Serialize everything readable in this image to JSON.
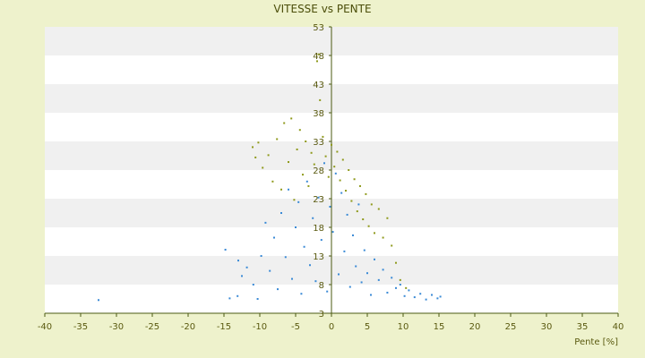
{
  "chart_data": {
    "type": "scatter",
    "title": "VITESSE vs PENTE",
    "xlabel": "Pente [%]",
    "ylabel": "",
    "xlim": [
      -40,
      40
    ],
    "ylim": [
      3,
      53
    ],
    "x_ticks": [
      -40,
      -35,
      -30,
      -25,
      -20,
      -15,
      -10,
      -5,
      0,
      5,
      10,
      15,
      20,
      25,
      30,
      35,
      40
    ],
    "y_ticks": [
      3,
      8,
      13,
      18,
      23,
      28,
      33,
      38,
      43,
      48,
      53
    ],
    "grid": "alternating-horizontal-bands",
    "legend": "none",
    "colors": {
      "background": "#eef2cc",
      "plot_band_light": "#ffffff",
      "plot_band_dark": "#f0f0f0",
      "axis": "#4b5a12",
      "tick_label": "#5a5a10",
      "series_1": "#3a8ad6",
      "series_2": "#8f9a1c"
    },
    "series": [
      {
        "color": "#3a8ad6",
        "description_points": "blue cluster",
        "points": [
          [
            -32.5,
            5.3
          ],
          [
            -14.2,
            5.6
          ],
          [
            -13.1,
            6.0
          ],
          [
            -14.8,
            14.1
          ],
          [
            -13.0,
            12.2
          ],
          [
            -12.5,
            9.5
          ],
          [
            -11.8,
            11.0
          ],
          [
            -10.9,
            8.0
          ],
          [
            -10.3,
            5.5
          ],
          [
            -9.8,
            13.0
          ],
          [
            -9.2,
            18.8
          ],
          [
            -8.6,
            10.4
          ],
          [
            -8.0,
            16.2
          ],
          [
            -7.5,
            7.2
          ],
          [
            -7.0,
            20.5
          ],
          [
            -6.4,
            12.8
          ],
          [
            -6.0,
            24.6
          ],
          [
            -5.5,
            9.0
          ],
          [
            -5.0,
            18.0
          ],
          [
            -4.6,
            22.4
          ],
          [
            -4.2,
            6.4
          ],
          [
            -3.8,
            14.6
          ],
          [
            -3.4,
            26.0
          ],
          [
            -3.0,
            11.4
          ],
          [
            -2.6,
            19.6
          ],
          [
            -2.2,
            8.6
          ],
          [
            -1.8,
            23.2
          ],
          [
            -1.4,
            15.8
          ],
          [
            -1.0,
            29.2
          ],
          [
            -0.6,
            6.8
          ],
          [
            -0.2,
            21.6
          ],
          [
            0.2,
            17.2
          ],
          [
            0.6,
            27.4
          ],
          [
            1.0,
            9.8
          ],
          [
            1.4,
            24.0
          ],
          [
            1.8,
            13.8
          ],
          [
            2.2,
            20.2
          ],
          [
            2.6,
            7.6
          ],
          [
            3.0,
            16.6
          ],
          [
            3.4,
            11.2
          ],
          [
            3.8,
            22.0
          ],
          [
            4.2,
            8.4
          ],
          [
            4.6,
            14.0
          ],
          [
            5.0,
            10.0
          ],
          [
            5.5,
            6.2
          ],
          [
            6.0,
            12.4
          ],
          [
            6.6,
            8.8
          ],
          [
            7.2,
            10.6
          ],
          [
            7.8,
            6.6
          ],
          [
            8.4,
            9.2
          ],
          [
            9.0,
            7.4
          ],
          [
            9.6,
            8.0
          ],
          [
            10.2,
            6.0
          ],
          [
            10.8,
            7.0
          ],
          [
            11.6,
            5.8
          ],
          [
            12.4,
            6.4
          ],
          [
            13.2,
            5.4
          ],
          [
            14.0,
            6.2
          ],
          [
            14.8,
            5.6
          ],
          [
            15.2,
            5.9
          ]
        ]
      },
      {
        "color": "#8f9a1c",
        "description_points": "olive cluster",
        "points": [
          [
            -11.0,
            32.0
          ],
          [
            -10.6,
            30.2
          ],
          [
            -10.2,
            32.8
          ],
          [
            -9.6,
            28.4
          ],
          [
            -8.8,
            30.6
          ],
          [
            -8.2,
            26.0
          ],
          [
            -7.6,
            33.4
          ],
          [
            -7.0,
            24.6
          ],
          [
            -6.6,
            36.2
          ],
          [
            -6.0,
            29.4
          ],
          [
            -5.6,
            37.0
          ],
          [
            -5.2,
            22.8
          ],
          [
            -4.8,
            31.6
          ],
          [
            -4.4,
            35.0
          ],
          [
            -4.0,
            27.2
          ],
          [
            -3.6,
            33.0
          ],
          [
            -3.2,
            25.2
          ],
          [
            -2.8,
            31.0
          ],
          [
            -2.4,
            29.0
          ],
          [
            -2.0,
            47.0
          ],
          [
            -1.8,
            48.2
          ],
          [
            -1.6,
            40.2
          ],
          [
            -1.2,
            33.8
          ],
          [
            -0.8,
            30.4
          ],
          [
            -0.4,
            26.8
          ],
          [
            0.0,
            32.4
          ],
          [
            0.4,
            28.6
          ],
          [
            0.8,
            31.2
          ],
          [
            1.2,
            26.2
          ],
          [
            1.6,
            29.8
          ],
          [
            2.0,
            24.4
          ],
          [
            2.4,
            28.0
          ],
          [
            2.8,
            22.6
          ],
          [
            3.2,
            26.4
          ],
          [
            3.6,
            20.8
          ],
          [
            4.0,
            25.2
          ],
          [
            4.4,
            19.4
          ],
          [
            4.8,
            23.8
          ],
          [
            5.2,
            18.2
          ],
          [
            5.6,
            22.0
          ],
          [
            6.0,
            17.0
          ],
          [
            6.6,
            21.2
          ],
          [
            7.2,
            16.2
          ],
          [
            7.8,
            19.6
          ],
          [
            8.4,
            14.8
          ],
          [
            9.0,
            11.8
          ],
          [
            9.6,
            8.8
          ],
          [
            10.4,
            7.4
          ]
        ]
      }
    ]
  }
}
